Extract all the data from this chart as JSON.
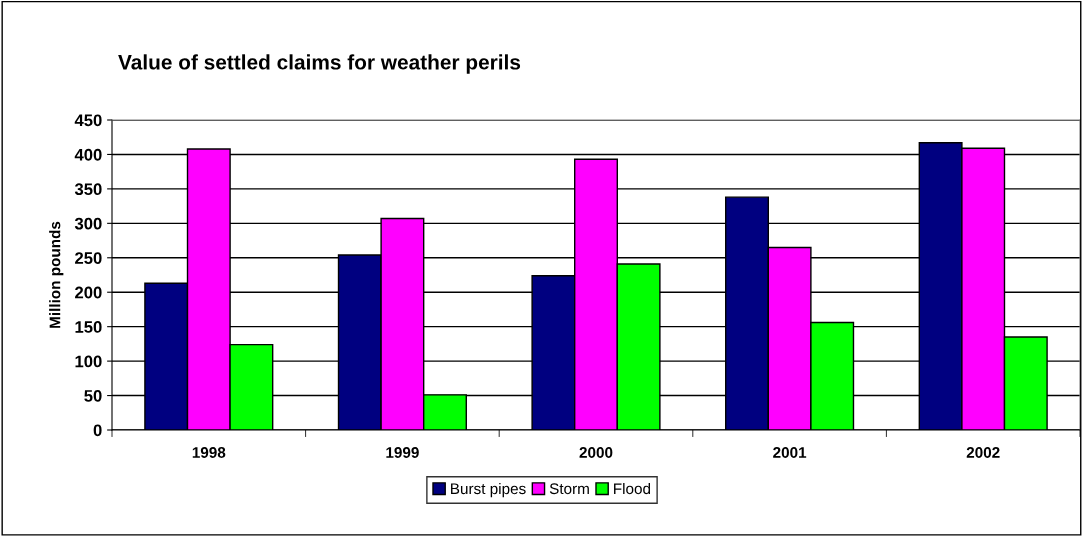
{
  "chart_data": {
    "type": "bar",
    "title": "Value of settled claims for weather perils",
    "ylabel": "Million pounds",
    "categories": [
      "1998",
      "1999",
      "2000",
      "2001",
      "2002"
    ],
    "series": [
      {
        "name": "Burst pipes",
        "color": "#000080",
        "values": [
          213,
          254,
          224,
          338,
          417
        ]
      },
      {
        "name": "Storm",
        "color": "#ff00ff",
        "values": [
          408,
          307,
          393,
          265,
          409
        ]
      },
      {
        "name": "Flood",
        "color": "#00ff00",
        "values": [
          124,
          51,
          241,
          156,
          135
        ]
      }
    ],
    "ylim": [
      0,
      450
    ],
    "yticks": [
      0,
      50,
      100,
      150,
      200,
      250,
      300,
      350,
      400,
      450
    ],
    "grid": "y",
    "legend": "bottom"
  }
}
